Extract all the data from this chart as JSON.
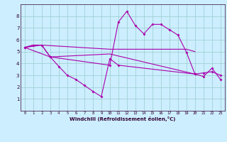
{
  "xlabel": "Windchill (Refroidissement éolien,°C)",
  "bg_color": "#cceeff",
  "line_color": "#aa00aa",
  "xlim": [
    -0.5,
    23.5
  ],
  "ylim": [
    0,
    9
  ],
  "xticks": [
    0,
    1,
    2,
    3,
    4,
    5,
    6,
    7,
    8,
    9,
    10,
    11,
    12,
    13,
    14,
    15,
    16,
    17,
    18,
    19,
    20,
    21,
    22,
    23
  ],
  "yticks": [
    1,
    2,
    3,
    4,
    5,
    6,
    7,
    8
  ],
  "curve1_x": [
    0,
    1,
    2,
    3,
    10,
    11,
    12,
    13,
    14,
    15,
    16,
    17,
    18,
    19,
    20,
    21,
    22,
    23
  ],
  "curve1_y": [
    5.35,
    5.55,
    5.55,
    4.55,
    3.85,
    7.5,
    8.4,
    7.2,
    6.5,
    7.3,
    7.3,
    6.85,
    6.4,
    4.95,
    3.1,
    2.9,
    3.6,
    2.65
  ],
  "line1_x": [
    0,
    1,
    2,
    10,
    11,
    12,
    13,
    14,
    15,
    16,
    17,
    18,
    19,
    20
  ],
  "line1_y": [
    5.35,
    5.55,
    5.55,
    5.2,
    5.2,
    5.2,
    5.2,
    5.2,
    5.2,
    5.2,
    5.2,
    5.2,
    5.2,
    5.0
  ],
  "line2_x": [
    0,
    2,
    3,
    10,
    20
  ],
  "line2_y": [
    5.35,
    5.55,
    4.55,
    4.8,
    3.1
  ],
  "curve2_x": [
    0,
    3,
    4,
    5,
    6,
    7,
    8,
    9,
    10,
    11,
    20,
    21,
    22,
    23
  ],
  "curve2_y": [
    5.35,
    4.55,
    3.75,
    3.0,
    2.65,
    2.15,
    1.65,
    1.2,
    4.4,
    3.85,
    3.1,
    3.2,
    3.3,
    3.0
  ]
}
